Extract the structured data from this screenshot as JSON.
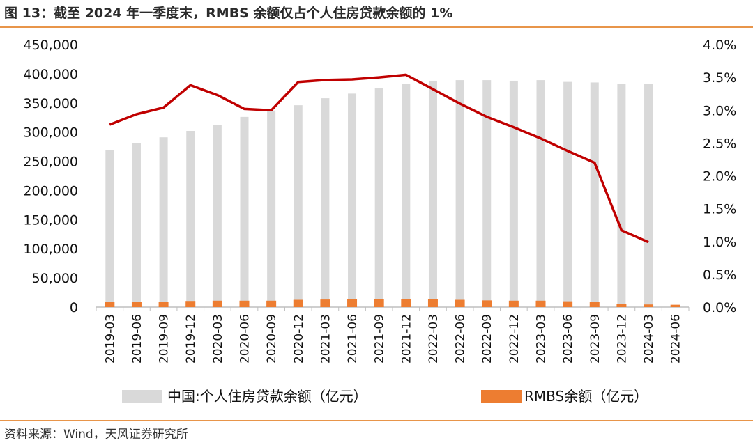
{
  "title": "图 13：截至 2024 年一季度末，RMBS 余额仅占个人住房贷款余额的 1%",
  "source": "资料来源：Wind，天风证券研究所",
  "chart_data": {
    "type": "bar",
    "categories": [
      "2019-03",
      "2019-06",
      "2019-09",
      "2019-12",
      "2020-03",
      "2020-06",
      "2020-09",
      "2020-12",
      "2021-03",
      "2021-06",
      "2021-09",
      "2021-12",
      "2022-03",
      "2022-06",
      "2022-09",
      "2022-12",
      "2023-03",
      "2023-06",
      "2023-09",
      "2023-12",
      "2024-03",
      "2024-06"
    ],
    "series": [
      {
        "name": "中国:个人住房贷款余额（亿元）",
        "type": "bar",
        "axis": "left",
        "color": "#d9d9d9",
        "values": [
          269000,
          281000,
          291000,
          302000,
          312000,
          326000,
          337000,
          346000,
          358000,
          366000,
          375000,
          383000,
          388000,
          389000,
          389000,
          388000,
          389000,
          386000,
          385000,
          382000,
          383000,
          null
        ]
      },
      {
        "name": "RMBS余额（亿元）",
        "type": "bar",
        "axis": "left",
        "color": "#ed7d31",
        "values": [
          8500,
          9000,
          9500,
          10500,
          11000,
          11000,
          11000,
          12500,
          13000,
          13500,
          14000,
          14000,
          13500,
          12500,
          11500,
          11000,
          11000,
          10000,
          9500,
          5500,
          4500,
          4000
        ]
      },
      {
        "type": "line",
        "axis": "right",
        "color": "#c00000",
        "values": [
          0.0278,
          0.0294,
          0.0304,
          0.0338,
          0.0323,
          0.0302,
          0.03,
          0.0343,
          0.0346,
          0.0347,
          0.035,
          0.0354,
          0.0332,
          0.031,
          0.029,
          0.0274,
          0.0257,
          0.0238,
          0.022,
          0.0117,
          0.0099,
          null
        ]
      }
    ],
    "left_axis": {
      "ylim": [
        0,
        450000
      ],
      "ticks": [
        "0",
        "50,000",
        "100,000",
        "150,000",
        "200,000",
        "250,000",
        "300,000",
        "350,000",
        "400,000",
        "450,000"
      ]
    },
    "right_axis": {
      "ylim": [
        0,
        0.04
      ],
      "ticks": [
        "0.0%",
        "0.5%",
        "1.0%",
        "1.5%",
        "2.0%",
        "2.5%",
        "3.0%",
        "3.5%",
        "4.0%"
      ]
    },
    "grid": false,
    "legend": "bottom"
  }
}
